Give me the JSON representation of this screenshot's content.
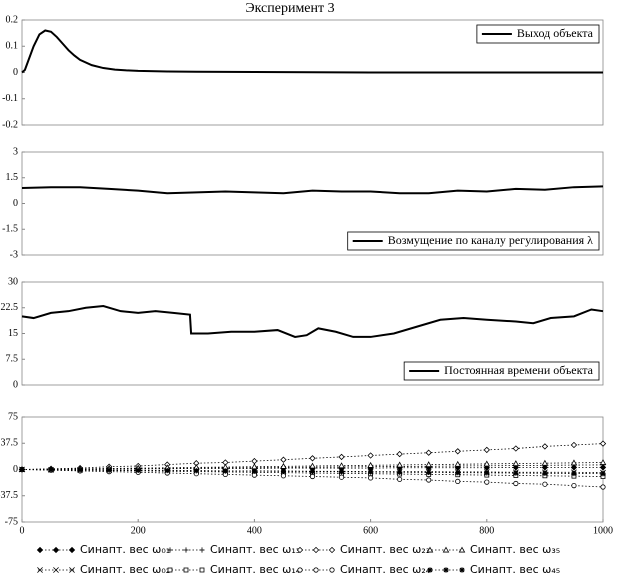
{
  "chart_data": [
    {
      "type": "line",
      "title": "Эксперимент 3",
      "xlim": [
        0,
        1000
      ],
      "ylim": [
        -0.2,
        0.2
      ],
      "yticks": [
        -0.2,
        -0.1,
        0,
        0.1,
        0.2
      ],
      "legend": "upper right",
      "series": [
        {
          "name": "Выход объекта",
          "color": "#000000",
          "x": [
            0,
            5,
            10,
            20,
            30,
            40,
            50,
            60,
            70,
            80,
            90,
            100,
            120,
            140,
            160,
            180,
            200,
            250,
            300,
            400,
            500,
            600,
            700,
            800,
            900,
            1000
          ],
          "values": [
            0,
            0.01,
            0.04,
            0.1,
            0.145,
            0.16,
            0.155,
            0.135,
            0.11,
            0.085,
            0.065,
            0.048,
            0.028,
            0.017,
            0.011,
            0.008,
            0.006,
            0.004,
            0.003,
            0.002,
            0.001,
            0,
            0,
            0,
            0,
            0
          ]
        }
      ]
    },
    {
      "type": "line",
      "xlim": [
        0,
        1000
      ],
      "ylim": [
        -3,
        3
      ],
      "yticks": [
        -3,
        -1.5,
        0,
        1.5,
        3
      ],
      "legend": "lower right",
      "series": [
        {
          "name": "Возмущение по каналу регулирования λ",
          "color": "#000000",
          "x": [
            0,
            50,
            100,
            150,
            200,
            250,
            300,
            350,
            400,
            450,
            500,
            550,
            600,
            650,
            700,
            750,
            800,
            850,
            900,
            950,
            1000
          ],
          "values": [
            0.9,
            0.95,
            0.95,
            0.85,
            0.75,
            0.6,
            0.65,
            0.7,
            0.65,
            0.6,
            0.75,
            0.7,
            0.7,
            0.6,
            0.6,
            0.75,
            0.7,
            0.85,
            0.8,
            0.95,
            1.0
          ]
        }
      ]
    },
    {
      "type": "line",
      "xlim": [
        0,
        1000
      ],
      "ylim": [
        0,
        30
      ],
      "yticks": [
        0,
        7.5,
        15,
        22.5,
        30
      ],
      "legend": "lower right",
      "series": [
        {
          "name": "Постоянная времени объекта",
          "color": "#000000",
          "x": [
            0,
            20,
            50,
            80,
            110,
            140,
            170,
            200,
            230,
            260,
            289,
            291,
            320,
            360,
            400,
            440,
            470,
            490,
            510,
            540,
            570,
            600,
            640,
            680,
            720,
            760,
            800,
            850,
            880,
            910,
            950,
            980,
            1000
          ],
          "values": [
            20,
            19.5,
            21,
            21.5,
            22.5,
            23,
            21.5,
            21,
            21.5,
            21,
            20.5,
            15,
            15,
            15.5,
            15.5,
            16,
            14,
            14.5,
            16.5,
            15.5,
            14,
            14,
            15,
            17,
            19,
            19.5,
            19,
            18.5,
            18,
            19.5,
            20,
            22,
            21.5
          ]
        }
      ]
    },
    {
      "type": "line",
      "xlim": [
        0,
        1000
      ],
      "ylim": [
        -75,
        75
      ],
      "yticks": [
        -75,
        -37.5,
        0,
        37.5,
        75
      ],
      "xticks": [
        0,
        200,
        400,
        600,
        800,
        1000
      ],
      "legend": "below",
      "x": [
        0,
        50,
        100,
        150,
        200,
        250,
        300,
        350,
        400,
        450,
        500,
        550,
        600,
        650,
        700,
        750,
        800,
        850,
        900,
        950,
        1000
      ],
      "series": [
        {
          "name": "Синапт. вес ω₀₁",
          "color": "#000000",
          "marker": "filled-diamond",
          "values": [
            0,
            0.5,
            0.5,
            1,
            1,
            1,
            1.5,
            1.5,
            1.5,
            2,
            2,
            2,
            2,
            2.5,
            2.5,
            2.5,
            2.5,
            3,
            3,
            3,
            3
          ]
        },
        {
          "name": "Синапт. вес ω₀₂",
          "color": "#000000",
          "marker": "x",
          "values": [
            0,
            -0.5,
            -0.5,
            -1,
            -1,
            -1.5,
            -1.5,
            -2,
            -2,
            -2,
            -2.5,
            -2.5,
            -3,
            -3,
            -3,
            -3.5,
            -3.5,
            -4,
            -4,
            -4,
            -4.5
          ]
        },
        {
          "name": "Синапт. вес ω₁₃",
          "color": "#000000",
          "marker": "plus",
          "values": [
            0,
            0.3,
            0.6,
            1,
            1.3,
            1.6,
            2,
            2.3,
            2.6,
            3,
            3.3,
            3.6,
            4,
            4.3,
            4.6,
            5,
            5.3,
            5.6,
            6,
            6.3,
            6.6
          ]
        },
        {
          "name": "Синапт. вес ω₁₄",
          "color": "#000000",
          "marker": "square",
          "values": [
            0,
            -0.5,
            -1,
            -1.5,
            -2,
            -2.5,
            -3,
            -3.5,
            -4,
            -4.5,
            -5,
            -5.5,
            -6,
            -6.5,
            -7,
            -7.5,
            -8,
            -8.5,
            -9,
            -9.5,
            -10
          ]
        },
        {
          "name": "Синапт. вес ω₂₃",
          "color": "#000000",
          "marker": "diamond",
          "values": [
            0,
            1,
            2,
            4,
            5,
            7,
            9,
            10,
            12,
            14,
            16,
            18,
            20,
            22,
            24,
            26,
            28,
            30,
            33,
            35,
            37
          ]
        },
        {
          "name": "Синапт. вес ω₂₄",
          "color": "#000000",
          "marker": "circle",
          "values": [
            0,
            -1,
            -2,
            -3,
            -4,
            -5,
            -6,
            -7,
            -8,
            -9,
            -10,
            -11,
            -12,
            -14,
            -15,
            -17,
            -18,
            -20,
            -21,
            -23,
            -25
          ]
        },
        {
          "name": "Синапт. вес ω₃₅",
          "color": "#000000",
          "marker": "triangle",
          "values": [
            0,
            0.5,
            1,
            1.5,
            2,
            2.5,
            3,
            3.5,
            4,
            4.5,
            5,
            5.5,
            6,
            6.5,
            7,
            7.5,
            8,
            8.5,
            9,
            9.5,
            10
          ]
        },
        {
          "name": "Синапт. вес ω₄₅",
          "color": "#000000",
          "marker": "star",
          "values": [
            0,
            -0.3,
            -0.6,
            -0.9,
            -1.2,
            -1.5,
            -1.8,
            -2.1,
            -2.4,
            -2.7,
            -3,
            -3.3,
            -3.6,
            -3.9,
            -4.2,
            -4.5,
            -4.8,
            -5.1,
            -5.4,
            -5.7,
            -6
          ]
        }
      ]
    }
  ]
}
